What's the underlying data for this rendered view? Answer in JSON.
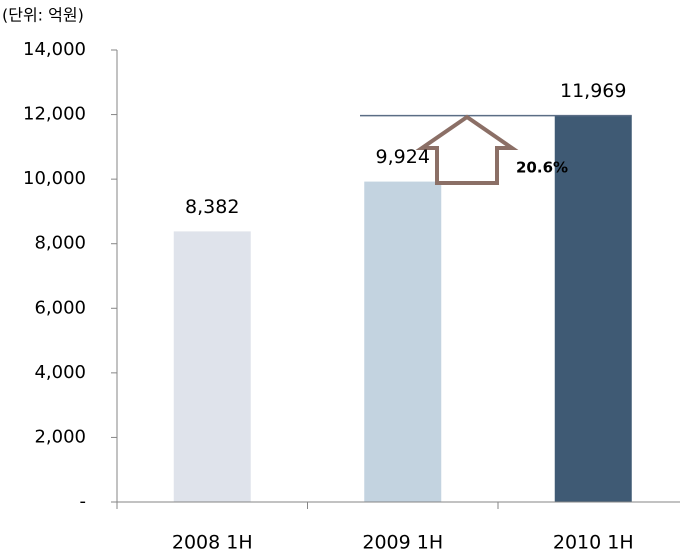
{
  "chart_data": {
    "type": "bar",
    "subtitle": "(단위: 억원)",
    "categories": [
      "2008 1H",
      "2009 1H",
      "2010 1H"
    ],
    "values": [
      8382,
      9924,
      11969
    ],
    "value_labels": [
      "8,382",
      "9,924",
      "11,969"
    ],
    "colors": [
      "#dfe3eb",
      "#c3d3e0",
      "#3f5a74"
    ],
    "ylim": [
      0,
      14000
    ],
    "yticks": [
      {
        "value": 0,
        "label": "-"
      },
      {
        "value": 2000,
        "label": "2,000"
      },
      {
        "value": 4000,
        "label": "4,000"
      },
      {
        "value": 6000,
        "label": "6,000"
      },
      {
        "value": 8000,
        "label": "8,000"
      },
      {
        "value": 10000,
        "label": "10,000"
      },
      {
        "value": 12000,
        "label": "12,000"
      },
      {
        "value": 14000,
        "label": "14,000"
      }
    ],
    "annotation": "20.6%"
  }
}
